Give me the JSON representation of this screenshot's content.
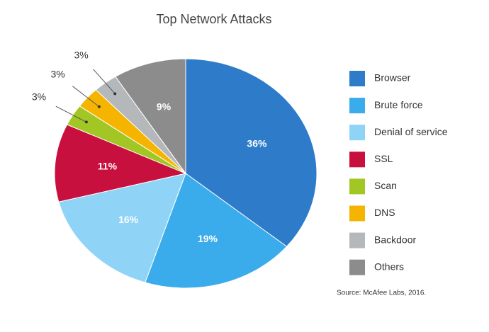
{
  "chart_data": {
    "type": "pie",
    "title": "Top Network Attacks",
    "categories": [
      "Browser",
      "Brute force",
      "Denial of service",
      "SSL",
      "Scan",
      "DNS",
      "Backdoor",
      "Others"
    ],
    "values": [
      36,
      19,
      16,
      11,
      3,
      3,
      3,
      9
    ],
    "value_labels": [
      "36%",
      "19%",
      "16%",
      "11%",
      "3%",
      "3%",
      "3%",
      "9%"
    ],
    "colors": [
      "#2e7cc9",
      "#3aabeb",
      "#8fd3f7",
      "#c8103e",
      "#a2c724",
      "#f5b400",
      "#b5b8bb",
      "#8c8c8c"
    ],
    "legend": "right",
    "source": "Source: McAfee Labs, 2016."
  }
}
